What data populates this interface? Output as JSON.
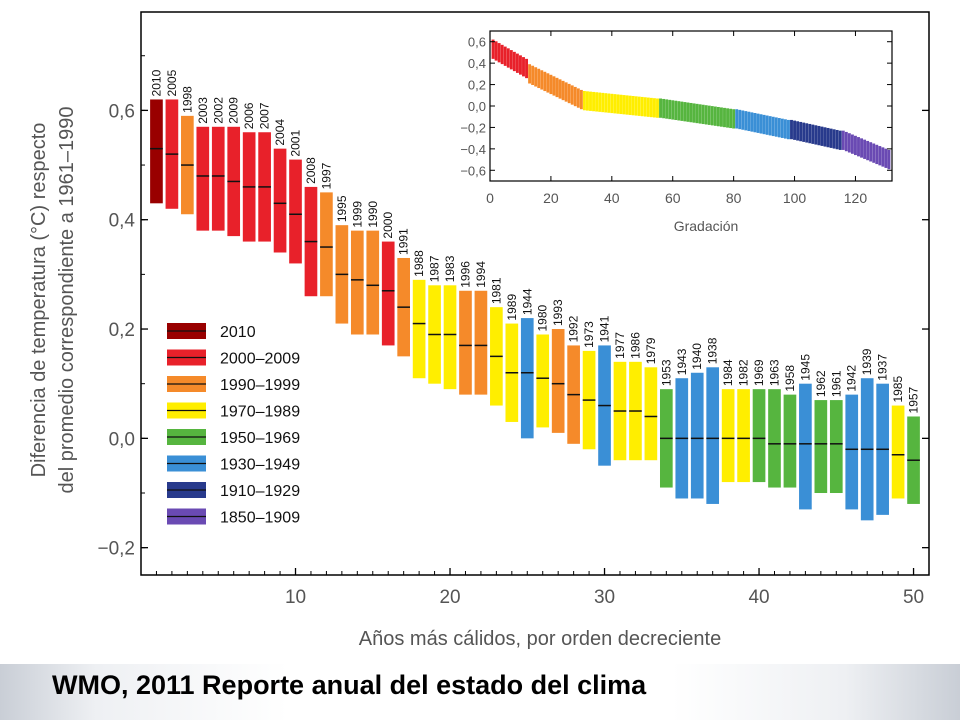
{
  "footer": {
    "caption": "WMO, 2011 Reporte anual del estado del clima"
  },
  "chart_data": [
    {
      "type": "bar",
      "subtype": "floating-range",
      "title": "",
      "xlabel": "Años más cálidos, por orden decreciente",
      "ylabel_line1": "Diferencia de temperatura (°C) respecto",
      "ylabel_line2": "del promedio correspondiente a 1961–1990",
      "xlim": [
        0,
        51
      ],
      "ylim": [
        -0.25,
        0.78
      ],
      "xticks": [
        10,
        20,
        30,
        40,
        50
      ],
      "xtick_labels": [
        "10",
        "20",
        "30",
        "40",
        "50"
      ],
      "yticks": [
        -0.2,
        0.0,
        0.2,
        0.4,
        0.6
      ],
      "ytick_labels": [
        "−0,2",
        "0,0",
        "0,2",
        "0,4",
        "0,6"
      ],
      "grid": false,
      "legend_position": "left-middle",
      "legend": [
        {
          "label": "2010",
          "color": "#990000"
        },
        {
          "label": "2000–2009",
          "color": "#e8212a"
        },
        {
          "label": "1990–1999",
          "color": "#f58a2a"
        },
        {
          "label": "1970–1989",
          "color": "#ffee00"
        },
        {
          "label": "1950–1969",
          "color": "#56b53f"
        },
        {
          "label": "1930–1949",
          "color": "#3a8fd6"
        },
        {
          "label": "1910–1929",
          "color": "#283a8c"
        },
        {
          "label": "1850–1909",
          "color": "#6a4ab3"
        }
      ],
      "ranks": [
        {
          "rank": 1,
          "year": "2010",
          "mean": 0.53,
          "low": 0.43,
          "high": 0.62,
          "color": "#990000"
        },
        {
          "rank": 2,
          "year": "2005",
          "mean": 0.52,
          "low": 0.42,
          "high": 0.62,
          "color": "#e8212a"
        },
        {
          "rank": 3,
          "year": "1998",
          "mean": 0.5,
          "low": 0.41,
          "high": 0.59,
          "color": "#f58a2a"
        },
        {
          "rank": 4,
          "year": "2003",
          "mean": 0.48,
          "low": 0.38,
          "high": 0.57,
          "color": "#e8212a"
        },
        {
          "rank": 5,
          "year": "2002",
          "mean": 0.48,
          "low": 0.38,
          "high": 0.57,
          "color": "#e8212a"
        },
        {
          "rank": 6,
          "year": "2009",
          "mean": 0.47,
          "low": 0.37,
          "high": 0.57,
          "color": "#e8212a"
        },
        {
          "rank": 7,
          "year": "2006",
          "mean": 0.46,
          "low": 0.36,
          "high": 0.56,
          "color": "#e8212a"
        },
        {
          "rank": 8,
          "year": "2007",
          "mean": 0.46,
          "low": 0.36,
          "high": 0.56,
          "color": "#e8212a"
        },
        {
          "rank": 9,
          "year": "2004",
          "mean": 0.43,
          "low": 0.34,
          "high": 0.53,
          "color": "#e8212a"
        },
        {
          "rank": 10,
          "year": "2001",
          "mean": 0.41,
          "low": 0.32,
          "high": 0.51,
          "color": "#e8212a"
        },
        {
          "rank": 11,
          "year": "2008",
          "mean": 0.36,
          "low": 0.26,
          "high": 0.46,
          "color": "#e8212a"
        },
        {
          "rank": 12,
          "year": "1997",
          "mean": 0.35,
          "low": 0.26,
          "high": 0.45,
          "color": "#f58a2a"
        },
        {
          "rank": 13,
          "year": "1995",
          "mean": 0.3,
          "low": 0.21,
          "high": 0.39,
          "color": "#f58a2a"
        },
        {
          "rank": 14,
          "year": "1999",
          "mean": 0.29,
          "low": 0.19,
          "high": 0.38,
          "color": "#f58a2a"
        },
        {
          "rank": 15,
          "year": "1990",
          "mean": 0.28,
          "low": 0.19,
          "high": 0.38,
          "color": "#f58a2a"
        },
        {
          "rank": 16,
          "year": "2000",
          "mean": 0.27,
          "low": 0.17,
          "high": 0.36,
          "color": "#e8212a"
        },
        {
          "rank": 17,
          "year": "1991",
          "mean": 0.24,
          "low": 0.15,
          "high": 0.33,
          "color": "#f58a2a"
        },
        {
          "rank": 18,
          "year": "1988",
          "mean": 0.21,
          "low": 0.11,
          "high": 0.29,
          "color": "#ffee00"
        },
        {
          "rank": 19,
          "year": "1987",
          "mean": 0.19,
          "low": 0.1,
          "high": 0.28,
          "color": "#ffee00"
        },
        {
          "rank": 20,
          "year": "1983",
          "mean": 0.19,
          "low": 0.09,
          "high": 0.28,
          "color": "#ffee00"
        },
        {
          "rank": 21,
          "year": "1996",
          "mean": 0.17,
          "low": 0.08,
          "high": 0.27,
          "color": "#f58a2a"
        },
        {
          "rank": 22,
          "year": "1994",
          "mean": 0.17,
          "low": 0.08,
          "high": 0.27,
          "color": "#f58a2a"
        },
        {
          "rank": 23,
          "year": "1981",
          "mean": 0.15,
          "low": 0.06,
          "high": 0.24,
          "color": "#ffee00"
        },
        {
          "rank": 24,
          "year": "1989",
          "mean": 0.12,
          "low": 0.03,
          "high": 0.21,
          "color": "#ffee00"
        },
        {
          "rank": 25,
          "year": "1944",
          "mean": 0.12,
          "low": 0.0,
          "high": 0.22,
          "color": "#3a8fd6"
        },
        {
          "rank": 26,
          "year": "1980",
          "mean": 0.11,
          "low": 0.02,
          "high": 0.19,
          "color": "#ffee00"
        },
        {
          "rank": 27,
          "year": "1993",
          "mean": 0.1,
          "low": 0.01,
          "high": 0.2,
          "color": "#f58a2a"
        },
        {
          "rank": 28,
          "year": "1992",
          "mean": 0.08,
          "low": -0.01,
          "high": 0.17,
          "color": "#f58a2a"
        },
        {
          "rank": 29,
          "year": "1973",
          "mean": 0.07,
          "low": -0.02,
          "high": 0.16,
          "color": "#ffee00"
        },
        {
          "rank": 30,
          "year": "1941",
          "mean": 0.06,
          "low": -0.05,
          "high": 0.17,
          "color": "#3a8fd6"
        },
        {
          "rank": 31,
          "year": "1977",
          "mean": 0.05,
          "low": -0.04,
          "high": 0.14,
          "color": "#ffee00"
        },
        {
          "rank": 32,
          "year": "1986",
          "mean": 0.05,
          "low": -0.04,
          "high": 0.14,
          "color": "#ffee00"
        },
        {
          "rank": 33,
          "year": "1979",
          "mean": 0.04,
          "low": -0.04,
          "high": 0.13,
          "color": "#ffee00"
        },
        {
          "rank": 34,
          "year": "1953",
          "mean": 0.0,
          "low": -0.09,
          "high": 0.09,
          "color": "#56b53f"
        },
        {
          "rank": 35,
          "year": "1943",
          "mean": 0.0,
          "low": -0.11,
          "high": 0.11,
          "color": "#3a8fd6"
        },
        {
          "rank": 36,
          "year": "1940",
          "mean": 0.0,
          "low": -0.11,
          "high": 0.12,
          "color": "#3a8fd6"
        },
        {
          "rank": 37,
          "year": "1938",
          "mean": 0.0,
          "low": -0.12,
          "high": 0.13,
          "color": "#3a8fd6"
        },
        {
          "rank": 38,
          "year": "1984",
          "mean": 0.0,
          "low": -0.08,
          "high": 0.09,
          "color": "#ffee00"
        },
        {
          "rank": 39,
          "year": "1982",
          "mean": 0.0,
          "low": -0.08,
          "high": 0.09,
          "color": "#ffee00"
        },
        {
          "rank": 40,
          "year": "1969",
          "mean": 0.0,
          "low": -0.08,
          "high": 0.09,
          "color": "#56b53f"
        },
        {
          "rank": 41,
          "year": "1963",
          "mean": -0.01,
          "low": -0.09,
          "high": 0.09,
          "color": "#56b53f"
        },
        {
          "rank": 42,
          "year": "1958",
          "mean": -0.01,
          "low": -0.09,
          "high": 0.08,
          "color": "#56b53f"
        },
        {
          "rank": 43,
          "year": "1945",
          "mean": -0.01,
          "low": -0.13,
          "high": 0.1,
          "color": "#3a8fd6"
        },
        {
          "rank": 44,
          "year": "1962",
          "mean": -0.01,
          "low": -0.1,
          "high": 0.07,
          "color": "#56b53f"
        },
        {
          "rank": 45,
          "year": "1961",
          "mean": -0.01,
          "low": -0.1,
          "high": 0.07,
          "color": "#56b53f"
        },
        {
          "rank": 46,
          "year": "1942",
          "mean": -0.02,
          "low": -0.13,
          "high": 0.08,
          "color": "#3a8fd6"
        },
        {
          "rank": 47,
          "year": "1939",
          "mean": -0.02,
          "low": -0.15,
          "high": 0.11,
          "color": "#3a8fd6"
        },
        {
          "rank": 48,
          "year": "1937",
          "mean": -0.02,
          "low": -0.14,
          "high": 0.1,
          "color": "#3a8fd6"
        },
        {
          "rank": 49,
          "year": "1985",
          "mean": -0.03,
          "low": -0.11,
          "high": 0.06,
          "color": "#ffee00"
        },
        {
          "rank": 50,
          "year": "1957",
          "mean": -0.04,
          "low": -0.12,
          "high": 0.04,
          "color": "#56b53f"
        }
      ]
    },
    {
      "type": "bar",
      "subtype": "floating-range-inset",
      "title": "",
      "xlabel": "Gradación",
      "ylabel": "",
      "xlim": [
        0,
        132
      ],
      "ylim": [
        -0.7,
        0.7
      ],
      "xticks": [
        0,
        20,
        40,
        60,
        80,
        100,
        120
      ],
      "xtick_labels": [
        "0",
        "20",
        "40",
        "60",
        "80",
        "100",
        "120"
      ],
      "yticks": [
        -0.6,
        -0.4,
        -0.2,
        0.0,
        0.2,
        0.4,
        0.6
      ],
      "ytick_labels": [
        "−0,6",
        "−0,4",
        "−0,2",
        "0,0",
        "0,2",
        "0,4",
        "0,6"
      ],
      "grid": false,
      "description_of_series": "same ranking extended to all 131 years, coloured by period",
      "segments": [
        {
          "from": 1,
          "to": 12,
          "color": "#e8212a",
          "mean_start": 0.53,
          "mean_end": 0.35
        },
        {
          "from": 13,
          "to": 30,
          "color": "#f58a2a",
          "mean_start": 0.3,
          "mean_end": 0.06
        },
        {
          "from": 31,
          "to": 55,
          "color": "#ffee00",
          "mean_start": 0.05,
          "mean_end": -0.02
        },
        {
          "from": 56,
          "to": 80,
          "color": "#56b53f",
          "mean_start": -0.02,
          "mean_end": -0.12
        },
        {
          "from": 81,
          "to": 98,
          "color": "#3a8fd6",
          "mean_start": -0.12,
          "mean_end": -0.22
        },
        {
          "from": 99,
          "to": 115,
          "color": "#283a8c",
          "mean_start": -0.22,
          "mean_end": -0.32
        },
        {
          "from": 116,
          "to": 131,
          "color": "#6a4ab3",
          "mean_start": -0.32,
          "mean_end": -0.5
        }
      ],
      "half_width": 0.09
    }
  ]
}
